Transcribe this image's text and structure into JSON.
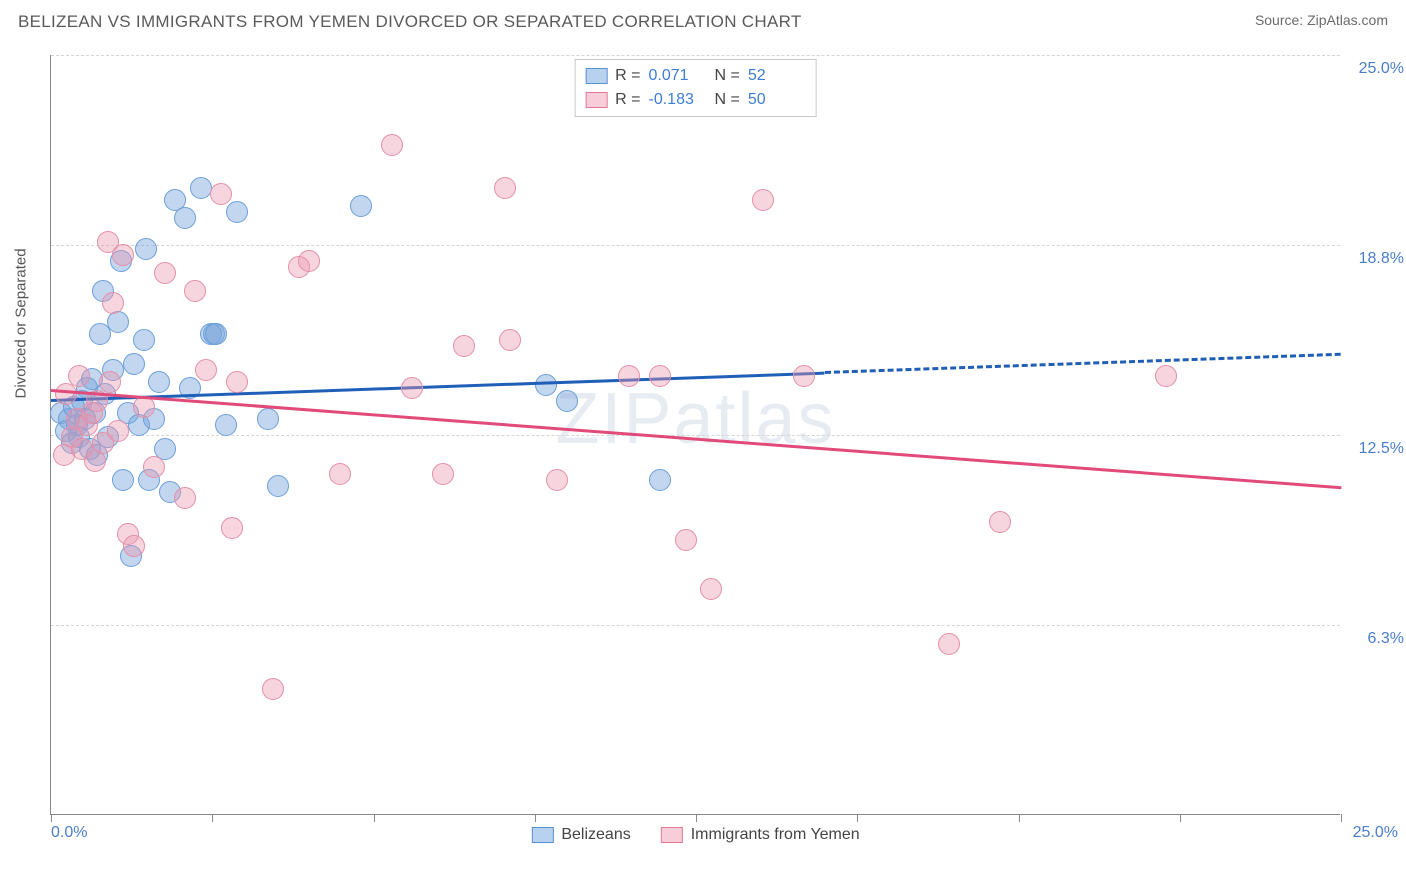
{
  "header": {
    "title": "BELIZEAN VS IMMIGRANTS FROM YEMEN DIVORCED OR SEPARATED CORRELATION CHART",
    "source": "Source: ZipAtlas.com"
  },
  "watermark": "ZIPatlas",
  "chart": {
    "type": "scatter",
    "y_title": "Divorced or Separated",
    "xlim": [
      0,
      25
    ],
    "ylim": [
      0,
      25
    ],
    "x_left_label": "0.0%",
    "x_right_label": "25.0%",
    "x_ticks": [
      0,
      3.125,
      6.25,
      9.375,
      12.5,
      15.625,
      18.75,
      21.875,
      25
    ],
    "y_grid": [
      6.25,
      12.5,
      18.75,
      25
    ],
    "y_labels": [
      "6.3%",
      "12.5%",
      "18.8%",
      "25.0%"
    ],
    "background_color": "#ffffff",
    "grid_color": "#d5d5d5",
    "series": [
      {
        "name": "Belizeans",
        "color_fill": "rgba(120,165,220,0.45)",
        "color_stroke": "#6b9fd8",
        "swatch_fill": "#b8d1ee",
        "swatch_border": "#5a8fd0",
        "reg_color": "#1f5fb8",
        "R": "0.071",
        "N": "52",
        "reg_start": {
          "x": 0,
          "y": 13.7
        },
        "reg_solid_end": {
          "x": 15,
          "y": 14.6
        },
        "reg_dash_end": {
          "x": 25,
          "y": 15.2
        },
        "dot_radius": 11,
        "points": [
          {
            "x": 0.2,
            "y": 13.2
          },
          {
            "x": 0.3,
            "y": 12.6
          },
          {
            "x": 0.35,
            "y": 13.0
          },
          {
            "x": 0.4,
            "y": 12.2
          },
          {
            "x": 0.45,
            "y": 13.4
          },
          {
            "x": 0.5,
            "y": 12.8
          },
          {
            "x": 0.55,
            "y": 12.4
          },
          {
            "x": 0.6,
            "y": 13.6
          },
          {
            "x": 0.65,
            "y": 13.0
          },
          {
            "x": 0.7,
            "y": 14.0
          },
          {
            "x": 0.75,
            "y": 12.0
          },
          {
            "x": 0.8,
            "y": 14.3
          },
          {
            "x": 0.85,
            "y": 13.2
          },
          {
            "x": 0.9,
            "y": 11.8
          },
          {
            "x": 0.95,
            "y": 15.8
          },
          {
            "x": 1.0,
            "y": 17.2
          },
          {
            "x": 1.05,
            "y": 13.8
          },
          {
            "x": 1.1,
            "y": 12.4
          },
          {
            "x": 1.2,
            "y": 14.6
          },
          {
            "x": 1.3,
            "y": 16.2
          },
          {
            "x": 1.35,
            "y": 18.2
          },
          {
            "x": 1.4,
            "y": 11.0
          },
          {
            "x": 1.5,
            "y": 13.2
          },
          {
            "x": 1.55,
            "y": 8.5
          },
          {
            "x": 1.6,
            "y": 14.8
          },
          {
            "x": 1.7,
            "y": 12.8
          },
          {
            "x": 1.8,
            "y": 15.6
          },
          {
            "x": 1.85,
            "y": 18.6
          },
          {
            "x": 1.9,
            "y": 11.0
          },
          {
            "x": 2.0,
            "y": 13.0
          },
          {
            "x": 2.1,
            "y": 14.2
          },
          {
            "x": 2.2,
            "y": 12.0
          },
          {
            "x": 2.3,
            "y": 10.6
          },
          {
            "x": 2.4,
            "y": 20.2
          },
          {
            "x": 2.6,
            "y": 19.6
          },
          {
            "x": 2.7,
            "y": 14.0
          },
          {
            "x": 2.9,
            "y": 20.6
          },
          {
            "x": 3.1,
            "y": 15.8
          },
          {
            "x": 3.15,
            "y": 15.8
          },
          {
            "x": 3.2,
            "y": 15.8
          },
          {
            "x": 3.4,
            "y": 12.8
          },
          {
            "x": 3.6,
            "y": 19.8
          },
          {
            "x": 4.2,
            "y": 13.0
          },
          {
            "x": 4.4,
            "y": 10.8
          },
          {
            "x": 6.0,
            "y": 20.0
          },
          {
            "x": 9.6,
            "y": 14.1
          },
          {
            "x": 10.0,
            "y": 13.6
          },
          {
            "x": 11.8,
            "y": 11.0
          }
        ]
      },
      {
        "name": "Immigrants from Yemen",
        "color_fill": "rgba(235,150,175,0.40)",
        "color_stroke": "#e38fa8",
        "swatch_fill": "#f6cdd9",
        "swatch_border": "#e27a98",
        "reg_color": "#e24a7a",
        "R": "-0.183",
        "N": "50",
        "reg_start": {
          "x": 0,
          "y": 14.0
        },
        "reg_solid_end": {
          "x": 25,
          "y": 10.8
        },
        "reg_dash_end": null,
        "dot_radius": 11,
        "points": [
          {
            "x": 0.25,
            "y": 11.8
          },
          {
            "x": 0.3,
            "y": 13.8
          },
          {
            "x": 0.4,
            "y": 12.4
          },
          {
            "x": 0.5,
            "y": 13.0
          },
          {
            "x": 0.55,
            "y": 14.4
          },
          {
            "x": 0.6,
            "y": 12.0
          },
          {
            "x": 0.7,
            "y": 12.8
          },
          {
            "x": 0.8,
            "y": 13.2
          },
          {
            "x": 0.85,
            "y": 11.6
          },
          {
            "x": 0.9,
            "y": 13.6
          },
          {
            "x": 1.0,
            "y": 12.2
          },
          {
            "x": 1.1,
            "y": 18.8
          },
          {
            "x": 1.15,
            "y": 14.2
          },
          {
            "x": 1.2,
            "y": 16.8
          },
          {
            "x": 1.3,
            "y": 12.6
          },
          {
            "x": 1.4,
            "y": 18.4
          },
          {
            "x": 1.5,
            "y": 9.2
          },
          {
            "x": 1.6,
            "y": 8.8
          },
          {
            "x": 1.8,
            "y": 13.4
          },
          {
            "x": 2.0,
            "y": 11.4
          },
          {
            "x": 2.2,
            "y": 17.8
          },
          {
            "x": 2.6,
            "y": 10.4
          },
          {
            "x": 2.8,
            "y": 17.2
          },
          {
            "x": 3.0,
            "y": 14.6
          },
          {
            "x": 3.3,
            "y": 20.4
          },
          {
            "x": 3.5,
            "y": 9.4
          },
          {
            "x": 3.6,
            "y": 14.2
          },
          {
            "x": 4.3,
            "y": 4.1
          },
          {
            "x": 4.8,
            "y": 18.0
          },
          {
            "x": 5.0,
            "y": 18.2
          },
          {
            "x": 5.6,
            "y": 11.2
          },
          {
            "x": 6.6,
            "y": 22.0
          },
          {
            "x": 7.0,
            "y": 14.0
          },
          {
            "x": 7.6,
            "y": 11.2
          },
          {
            "x": 8.0,
            "y": 15.4
          },
          {
            "x": 8.8,
            "y": 20.6
          },
          {
            "x": 8.9,
            "y": 15.6
          },
          {
            "x": 9.8,
            "y": 11.0
          },
          {
            "x": 11.2,
            "y": 14.4
          },
          {
            "x": 11.8,
            "y": 14.4
          },
          {
            "x": 12.3,
            "y": 9.0
          },
          {
            "x": 12.8,
            "y": 7.4
          },
          {
            "x": 13.8,
            "y": 20.2
          },
          {
            "x": 14.6,
            "y": 14.4
          },
          {
            "x": 17.4,
            "y": 5.6
          },
          {
            "x": 18.4,
            "y": 9.6
          },
          {
            "x": 21.6,
            "y": 14.4
          }
        ]
      }
    ]
  },
  "legend_bottom": [
    {
      "label": "Belizeans"
    },
    {
      "label": "Immigrants from Yemen"
    }
  ]
}
